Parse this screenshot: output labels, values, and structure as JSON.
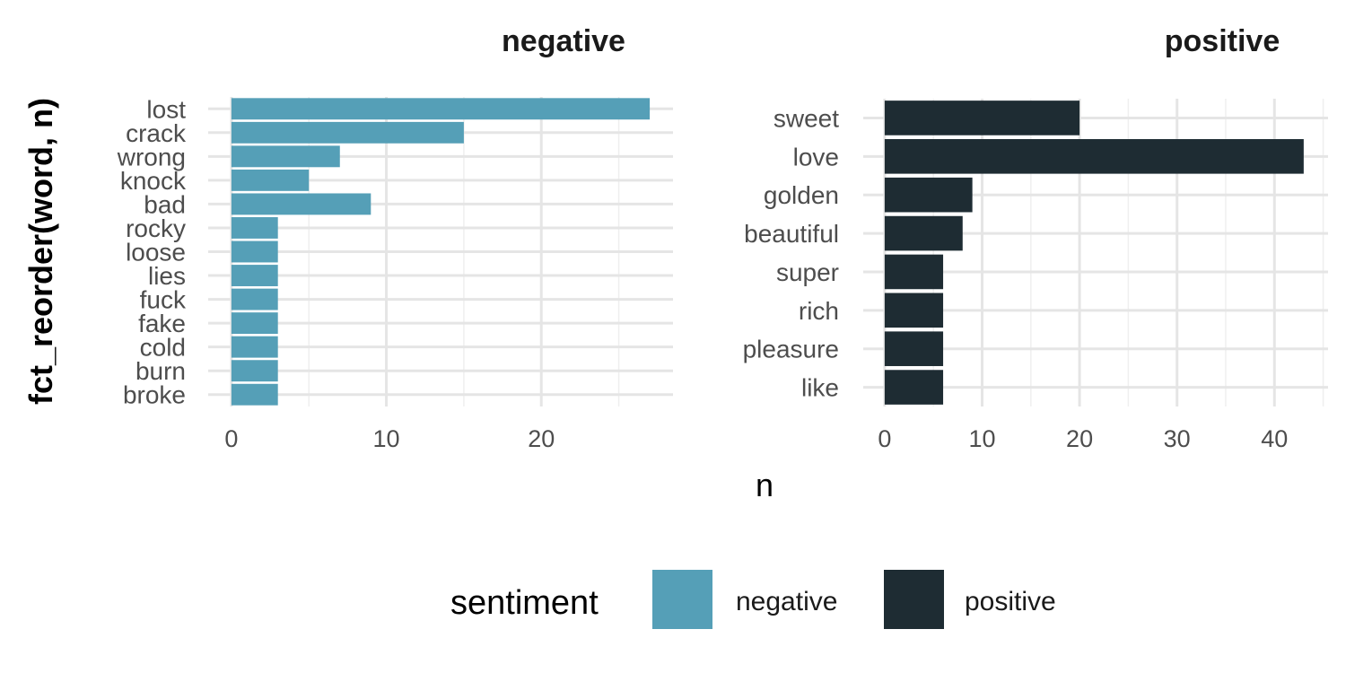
{
  "chart_data": {
    "type": "bar",
    "orientation": "horizontal",
    "ylabel": "fct_reorder(word, n)",
    "xlabel": "n",
    "legend": {
      "title": "sentiment",
      "placement": "bottom",
      "entries": [
        {
          "label": "negative",
          "color": "#559fb7"
        },
        {
          "label": "positive",
          "color": "#1e2c33"
        }
      ]
    },
    "grid": true,
    "facets": [
      {
        "title": "negative",
        "color": "#559fb7",
        "xlim": [
          -1.5,
          28.5
        ],
        "xticks": [
          0,
          10,
          20
        ],
        "categories": [
          "lost",
          "crack",
          "wrong",
          "knock",
          "bad",
          "rocky",
          "loose",
          "lies",
          "fuck",
          "fake",
          "cold",
          "burn",
          "broke"
        ],
        "values": [
          27,
          15,
          7,
          5,
          9,
          3,
          3,
          3,
          3,
          3,
          3,
          3,
          3
        ]
      },
      {
        "title": "positive",
        "color": "#1e2c33",
        "xlim": [
          -2.2,
          45.5
        ],
        "xticks": [
          0,
          10,
          20,
          30,
          40
        ],
        "categories": [
          "sweet",
          "love",
          "golden",
          "beautiful",
          "super",
          "rich",
          "pleasure",
          "like"
        ],
        "values": [
          20,
          43,
          9,
          8,
          6,
          6,
          6,
          6
        ]
      }
    ]
  }
}
